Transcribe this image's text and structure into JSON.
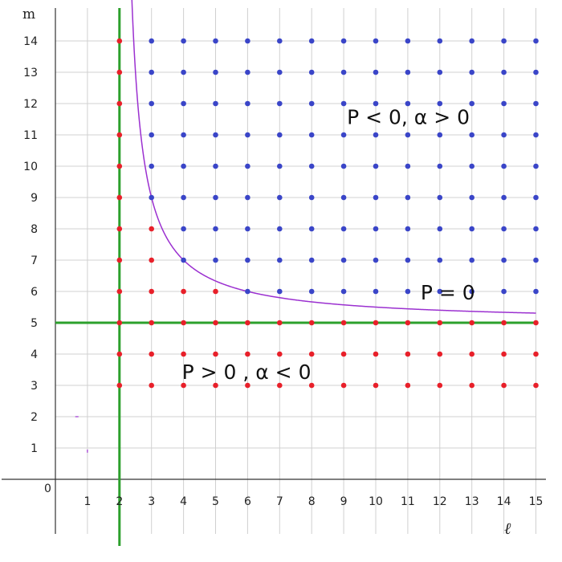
{
  "chart_data": {
    "type": "scatter",
    "title": "",
    "xlabel": "ℓ",
    "ylabel": "m",
    "origin_label": "0",
    "xlim": [
      -1,
      15
    ],
    "ylim": [
      -1.8,
      15
    ],
    "x_ticks": [
      1,
      2,
      3,
      4,
      5,
      6,
      7,
      8,
      9,
      10,
      11,
      12,
      13,
      14,
      15
    ],
    "y_ticks": [
      1,
      2,
      3,
      4,
      5,
      6,
      7,
      8,
      9,
      10,
      11,
      12,
      13,
      14
    ],
    "grid": true,
    "colors": {
      "blue_points": "#3a45c8",
      "red_points": "#e8202a",
      "boundary_lines": "#2ca02c",
      "curve": "#9b30d0",
      "grid": "#d0d0d0",
      "axis": "#333333"
    },
    "vertical_line": {
      "x": 2
    },
    "horizontal_line": {
      "y": 5
    },
    "curve": {
      "equation": "m = 5 + 4/(ℓ - 2)",
      "x_start": 2.32,
      "x_end": 15
    },
    "red_points": {
      "column_x2": {
        "x": 2,
        "y": [
          3,
          4,
          5,
          6,
          7,
          8,
          9,
          10,
          11,
          12,
          13,
          14
        ]
      },
      "rows_m3_to_m5": {
        "x_from": 3,
        "x_to": 15,
        "y": [
          3,
          4,
          5
        ]
      },
      "extra": [
        [
          3,
          6
        ],
        [
          3,
          7
        ],
        [
          3,
          8
        ],
        [
          4,
          6
        ],
        [
          5,
          6
        ]
      ]
    },
    "blue_points": {
      "x_from": 3,
      "x_to": 15,
      "y_from": 6,
      "y_to": 14,
      "rule": "points strictly above the P = 0 curve (x≥3, m≥6), excluding red extras"
    },
    "annotations": [
      {
        "text": "P < 0,  α > 0",
        "x": 9.1,
        "y": 11.35
      },
      {
        "text": "P  = 0",
        "x": 11.4,
        "y": 5.75
      },
      {
        "text": "P  > 0 , α < 0",
        "x": 3.95,
        "y": 3.2
      }
    ]
  }
}
